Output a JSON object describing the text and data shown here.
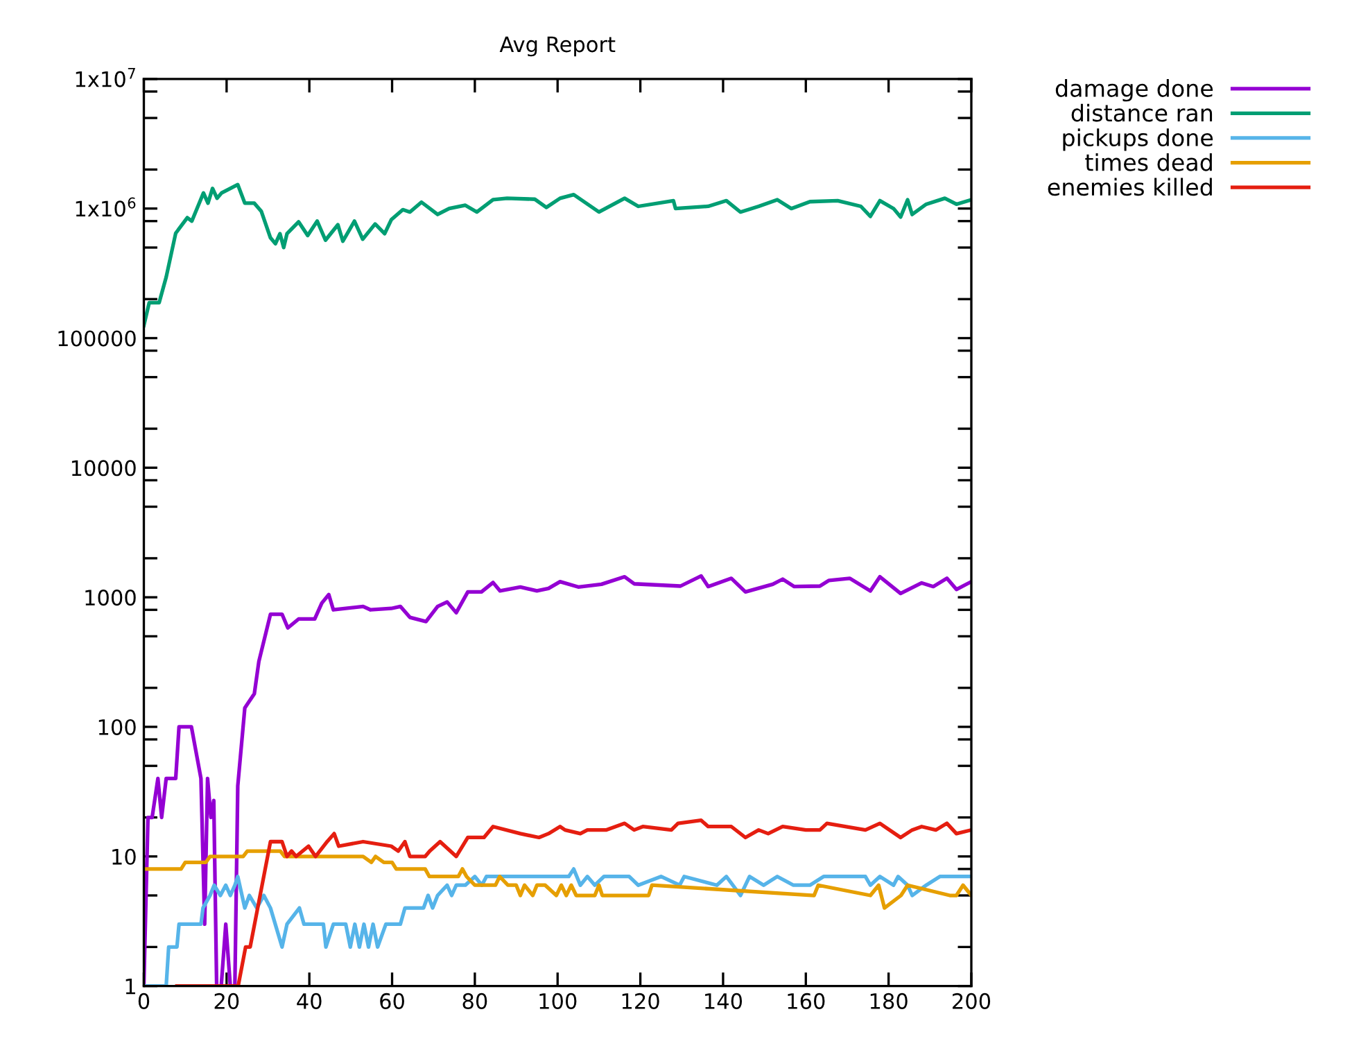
{
  "chart_data": {
    "type": "line",
    "title": "Avg Report",
    "log": "y",
    "legend": "top right",
    "grid": false,
    "marker": "none",
    "line_style": "solid",
    "xlim": [
      0,
      200
    ],
    "xticks": [
      0,
      20,
      40,
      60,
      80,
      100,
      120,
      140,
      160,
      180,
      200
    ],
    "ylim": [
      1,
      10000000
    ],
    "yticks": [
      1,
      {
        "value": 2,
        "label": null
      },
      {
        "value": 5,
        "label": null
      },
      {
        "value": 8,
        "label": null
      },
      10,
      {
        "value": 20,
        "label": null
      },
      {
        "value": 50,
        "label": null
      },
      {
        "value": 80,
        "label": null
      },
      100,
      {
        "value": 200,
        "label": null
      },
      {
        "value": 500,
        "label": null
      },
      {
        "value": 800,
        "label": null
      },
      1000,
      {
        "value": 2000,
        "label": null
      },
      {
        "value": 5000,
        "label": null
      },
      {
        "value": 8000,
        "label": null
      },
      10000,
      {
        "value": 20000,
        "label": null
      },
      {
        "value": 50000,
        "label": null
      },
      {
        "value": 80000,
        "label": null
      },
      100000,
      {
        "value": 200000,
        "label": null
      },
      {
        "value": 500000,
        "label": null
      },
      {
        "value": 800000,
        "label": null
      },
      {
        "value": 1000000,
        "label": "1x10$^{6}$"
      },
      {
        "value": 2000000,
        "label": null
      },
      {
        "value": 5000000,
        "label": null
      },
      {
        "value": 8000000,
        "label": null
      },
      {
        "value": 10000000,
        "label": "1x10$^{7}$"
      }
    ],
    "series": [
      {
        "name": "damage done",
        "color": "#9400d3",
        "x": [
          0,
          1,
          2,
          3.4,
          4.3,
          5.4,
          7.7,
          8.5,
          11.5,
          13.8,
          14.7,
          15.4,
          16.2,
          16.9,
          17.6,
          18.7,
          19.8,
          20.9,
          22,
          22.7,
          24.4,
          26.7,
          27.8,
          30.6,
          33.4,
          34.8,
          37.4,
          41.3,
          43,
          44.7,
          45.8,
          53,
          54.8,
          59.8,
          62,
          64.3,
          68.2,
          71,
          73.3,
          75.5,
          78.3,
          81.6,
          84.4,
          86.1,
          91,
          95,
          97.8,
          100.6,
          105,
          110.6,
          116.2,
          118.5,
          129.7,
          134.7,
          136.4,
          142,
          145.4,
          152,
          154.4,
          157.2,
          163.4,
          165.6,
          170.6,
          175.6,
          177.9,
          182.9,
          188,
          190.8,
          194.1,
          196.4,
          200
        ],
        "values": [
          1,
          20,
          20,
          40,
          20,
          40,
          40,
          100,
          100,
          40,
          3,
          40,
          20,
          27,
          1,
          1,
          3,
          1,
          1,
          35,
          140,
          180,
          320,
          740,
          740,
          580,
          680,
          680,
          900,
          1050,
          800,
          850,
          800,
          820,
          850,
          700,
          650,
          850,
          920,
          760,
          1100,
          1100,
          1300,
          1120,
          1200,
          1120,
          1170,
          1320,
          1200,
          1260,
          1440,
          1270,
          1220,
          1460,
          1210,
          1400,
          1100,
          1260,
          1380,
          1210,
          1220,
          1350,
          1400,
          1120,
          1440,
          1070,
          1290,
          1210,
          1400,
          1150,
          1320
        ]
      },
      {
        "name": "distance ran",
        "color": "#009e73",
        "x": [
          0,
          1.3,
          3.7,
          5.4,
          7.7,
          10.5,
          11.6,
          14.4,
          15.5,
          16.6,
          17.7,
          18.8,
          22.7,
          24.4,
          26.7,
          28.4,
          30.6,
          31.8,
          32.9,
          33.8,
          34.6,
          37.4,
          39.6,
          41.9,
          43.9,
          46.9,
          48.1,
          50.9,
          52.9,
          55.9,
          58.2,
          59.8,
          62.6,
          64.3,
          67.1,
          71,
          73.8,
          77.7,
          80.5,
          84.4,
          87.8,
          94.5,
          97.3,
          100.6,
          103.9,
          110,
          116.2,
          119.5,
          128,
          128.5,
          136.4,
          140.8,
          144.2,
          148.6,
          153.1,
          156.5,
          161,
          167.7,
          173.3,
          175.6,
          177.9,
          181.2,
          182.9,
          184.6,
          185.7,
          189.1,
          193.6,
          196.4,
          200
        ],
        "values": [
          125000,
          188000,
          188000,
          296000,
          645000,
          850000,
          800000,
          1320000,
          1100000,
          1430000,
          1200000,
          1320000,
          1530000,
          1100000,
          1100000,
          950000,
          595000,
          535000,
          640000,
          500000,
          640000,
          790000,
          620000,
          800000,
          570000,
          750000,
          560000,
          800000,
          580000,
          760000,
          640000,
          820000,
          980000,
          940000,
          1120000,
          900000,
          1000000,
          1060000,
          940000,
          1170000,
          1200000,
          1180000,
          1020000,
          1200000,
          1280000,
          940000,
          1200000,
          1040000,
          1150000,
          1000000,
          1040000,
          1150000,
          940000,
          1040000,
          1170000,
          1000000,
          1130000,
          1150000,
          1040000,
          870000,
          1150000,
          1000000,
          860000,
          1170000,
          900000,
          1080000,
          1200000,
          1080000,
          1170000
        ]
      },
      {
        "name": "pickups done",
        "color": "#56b4e9",
        "x": [
          0,
          5.4,
          6,
          8,
          8.5,
          13.8,
          14.3,
          16,
          17,
          18.5,
          19.8,
          20.9,
          22,
          22.7,
          24.4,
          25.5,
          27.3,
          29,
          30.6,
          33.4,
          34.6,
          37.6,
          38.7,
          43.4,
          44,
          45.8,
          48.8,
          49.9,
          51,
          52.1,
          53.2,
          54.3,
          55.4,
          56.5,
          58.5,
          62,
          63.1,
          67.6,
          68.7,
          69.8,
          71,
          73.3,
          74.4,
          75.5,
          77.7,
          80,
          81.7,
          82.8,
          96,
          102.7,
          103.9,
          105.5,
          107.2,
          109,
          111.2,
          117.3,
          119.5,
          125,
          129.5,
          130.6,
          138.5,
          140.8,
          144.2,
          146.4,
          149.8,
          153.1,
          157,
          161,
          164.3,
          174.4,
          175.6,
          177.9,
          181.2,
          182.3,
          184.6,
          185.7,
          189.1,
          192.4,
          200
        ],
        "values": [
          1,
          1,
          2,
          2,
          3,
          3,
          4,
          5,
          6,
          5,
          6,
          5,
          6,
          7,
          4,
          5,
          4,
          5,
          4,
          2,
          3,
          4,
          3,
          3,
          2,
          3,
          3,
          2,
          3,
          2,
          3,
          2,
          3,
          2,
          3,
          3,
          4,
          4,
          5,
          4,
          5,
          6,
          5,
          6,
          6,
          7,
          6,
          7,
          7,
          7,
          8,
          6,
          7,
          6,
          7,
          7,
          6,
          7,
          6,
          7,
          6,
          7,
          5,
          7,
          6,
          7,
          6,
          6,
          7,
          7,
          6,
          7,
          6,
          7,
          6,
          5,
          6,
          7,
          7
        ]
      },
      {
        "name": "times dead",
        "color": "#e69f00",
        "x": [
          0,
          9,
          10,
          15,
          16,
          24,
          25,
          33,
          34,
          53,
          55,
          56,
          58,
          60,
          61,
          68,
          69,
          76,
          77,
          78,
          80,
          85,
          86,
          88,
          90,
          91,
          92,
          94,
          95,
          97,
          99.7,
          100.9,
          102.1,
          103.3,
          104.5,
          109,
          110,
          110.8,
          122,
          122.8,
          162,
          163,
          175.6,
          177.6,
          179,
          183,
          184.6,
          194.8,
          196.4,
          198,
          200
        ],
        "values": [
          8,
          8,
          9,
          9,
          10,
          10,
          11,
          11,
          10,
          10,
          9,
          10,
          9,
          9,
          8,
          8,
          7,
          7,
          8,
          7,
          6,
          6,
          7,
          6,
          6,
          5,
          6,
          5,
          6,
          6,
          5,
          6,
          5,
          6,
          5,
          5,
          6,
          5,
          5,
          6,
          5,
          6,
          5,
          6,
          4,
          5,
          6,
          5,
          5,
          6,
          5
        ]
      },
      {
        "name": "enemies killed",
        "color": "#e51e10",
        "x": [
          8,
          22.8,
          24.6,
          25.7,
          30.6,
          33.4,
          34.6,
          35.7,
          36.8,
          39.8,
          41.5,
          44.3,
          46,
          47.1,
          53,
          59.8,
          61.5,
          63.1,
          64.3,
          68,
          69.1,
          71.6,
          75.5,
          78.3,
          82.2,
          84.4,
          91,
          95.5,
          97.8,
          100.6,
          101.8,
          105.5,
          107.2,
          111.7,
          116.2,
          118.5,
          120.6,
          127.5,
          129.1,
          134.7,
          136.4,
          142,
          145.4,
          148.6,
          150.9,
          154.4,
          160,
          163.4,
          165.1,
          174.4,
          177.9,
          182.9,
          185.7,
          188,
          191.4,
          194.1,
          196.4,
          200
        ],
        "values": [
          1,
          1,
          2,
          2,
          13,
          13,
          10,
          11,
          10,
          12,
          10,
          13,
          15,
          12,
          13,
          12,
          11,
          13,
          10,
          10,
          11,
          13,
          10,
          14,
          14,
          17,
          15,
          14,
          15,
          17,
          16,
          15,
          16,
          16,
          18,
          16,
          17,
          16,
          18,
          19,
          17,
          17,
          14,
          16,
          15,
          17,
          16,
          16,
          18,
          16,
          18,
          14,
          16,
          17,
          16,
          18,
          15,
          16
        ]
      }
    ]
  }
}
